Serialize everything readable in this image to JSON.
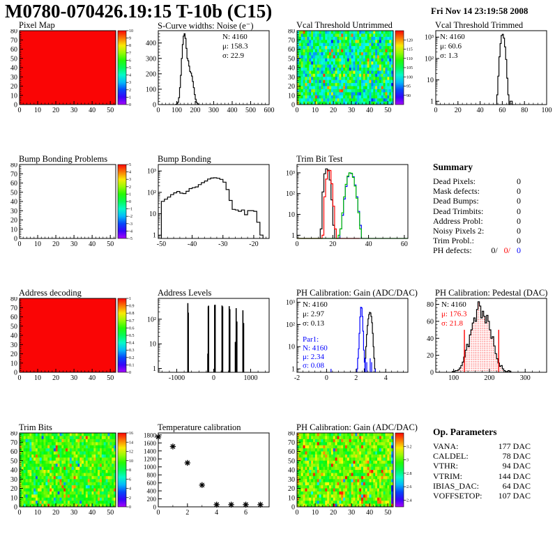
{
  "header": {
    "title": "M0780-070426.19:15 T-10b (C15)",
    "date": "Fri Nov 14 23:19:58 2008"
  },
  "summary": {
    "title": "Summary",
    "rows": [
      {
        "label": "Dead Pixels:",
        "value": "0"
      },
      {
        "label": "Mask defects:",
        "value": "0"
      },
      {
        "label": "Dead Bumps:",
        "value": "0"
      },
      {
        "label": "Dead Trimbits:",
        "value": "0"
      },
      {
        "label": "Address Probl:",
        "value": "0"
      },
      {
        "label": "Noisy Pixels 2:",
        "value": "0"
      },
      {
        "label": "Trim Probl.:",
        "value": "0"
      }
    ],
    "ph_defects": {
      "label": "PH defects:",
      "parts": [
        {
          "text": "0/",
          "color": "#000000"
        },
        {
          "text": "0/",
          "color": "#ff0000"
        },
        {
          "text": "0",
          "color": "#0000ff"
        }
      ]
    }
  },
  "op_parameters": {
    "title": "Op. Parameters",
    "rows": [
      {
        "label": "VANA:",
        "value": "177 DAC"
      },
      {
        "label": "CALDEL:",
        "value": "78 DAC"
      },
      {
        "label": "VTHR:",
        "value": "94 DAC"
      },
      {
        "label": "VTRIM:",
        "value": "144 DAC"
      },
      {
        "label": "IBIAS_DAC:",
        "value": "64 DAC"
      },
      {
        "label": "VOFFSETOP:",
        "value": "107 DAC"
      }
    ]
  },
  "colors": {
    "accent_red": "#ff0000",
    "accent_blue": "#0000ff",
    "accent_green": "#00c000",
    "black": "#000000"
  },
  "chart_data": [
    {
      "type": "heatmap",
      "title": "Pixel Map",
      "x": {
        "min": 0,
        "max": 53,
        "ticks": [
          0,
          10,
          20,
          30,
          40,
          50
        ],
        "minor": 2
      },
      "y": {
        "min": 0,
        "max": 80,
        "ticks": [
          0,
          10,
          20,
          30,
          40,
          50,
          60,
          70,
          80
        ],
        "minor": 2
      },
      "z": {
        "min": 0,
        "max": 10,
        "ticks": [
          0,
          1,
          2,
          3,
          4,
          5,
          6,
          7,
          8,
          9,
          10
        ]
      },
      "fill": {
        "mode": "uniform",
        "value": 10
      }
    },
    {
      "type": "hist",
      "title": "S-Curve widths: Noise (e⁻)",
      "x": {
        "min": 0,
        "max": 600,
        "ticks": [
          0,
          100,
          200,
          300,
          400,
          500,
          600
        ],
        "minor": 20
      },
      "y": {
        "log": false,
        "min": 0,
        "max": 480,
        "ticks": [
          0,
          100,
          200,
          300,
          400
        ],
        "minor": 20
      },
      "series": [
        {
          "color": "#000000",
          "x0": 95,
          "bin_width": 5,
          "values": [
            2,
            6,
            15,
            45,
            110,
            190,
            300,
            390,
            445,
            460,
            430,
            365,
            300,
            285,
            250,
            215,
            205,
            185,
            150,
            110,
            65,
            35,
            15,
            6,
            2
          ]
        }
      ],
      "stats": [
        {
          "pos": [
            120,
            14
          ],
          "lh": 13.5,
          "lines": [
            {
              "text": "N: 4160",
              "color": "#000000"
            },
            {
              "text": "μ: 158.3",
              "color": "#000000"
            },
            {
              "text": "σ: 22.9",
              "color": "#000000"
            }
          ]
        }
      ]
    },
    {
      "type": "heatmap",
      "title": "Vcal Threshold Untrimmed",
      "x": {
        "min": 0,
        "max": 53,
        "ticks": [
          0,
          10,
          20,
          30,
          40,
          50
        ],
        "minor": 2
      },
      "y": {
        "min": 0,
        "max": 80,
        "ticks": [
          0,
          10,
          20,
          30,
          40,
          50,
          60,
          70,
          80
        ],
        "minor": 2
      },
      "z": {
        "min": 85,
        "max": 125,
        "ticks": [
          90,
          95,
          100,
          105,
          110,
          115,
          120
        ]
      },
      "fill": {
        "mode": "noise",
        "seed": 7,
        "mean": 104,
        "sd": 4.5,
        "high_frac": 0.05,
        "high_shift": 13,
        "low_frac": 0.13,
        "low_shift": -8
      }
    },
    {
      "type": "hist",
      "title": "Vcal Threshold Trimmed",
      "x": {
        "min": 0,
        "max": 100,
        "ticks": [
          0,
          20,
          40,
          60,
          80,
          100
        ],
        "minor": 4
      },
      "y": {
        "log": true,
        "min": 0.7,
        "max": 2000
      },
      "series": [
        {
          "color": "#000000",
          "x0": 55,
          "bin_width": 1,
          "values": [
            2,
            15,
            120,
            500,
            1200,
            1350,
            900,
            350,
            90,
            12,
            2,
            0,
            1,
            1,
            0
          ]
        }
      ],
      "stats": [
        {
          "pos": [
            34,
            14
          ],
          "lh": 13.5,
          "lines": [
            {
              "text": "N: 4160",
              "color": "#000000"
            },
            {
              "text": "μ: 60.6",
              "color": "#000000"
            },
            {
              "text": "σ:  1.3",
              "color": "#000000"
            }
          ]
        }
      ]
    },
    {
      "type": "heatmap",
      "title": "Bump Bonding Problems",
      "x": {
        "min": 0,
        "max": 53,
        "ticks": [
          0,
          10,
          20,
          30,
          40,
          50
        ],
        "minor": 2
      },
      "y": {
        "min": 0,
        "max": 80,
        "ticks": [
          0,
          10,
          20,
          30,
          40,
          50,
          60,
          70,
          80
        ],
        "minor": 2
      },
      "z": {
        "min": -5,
        "max": 5,
        "ticks": [
          -5,
          -4,
          -3,
          -2,
          -1,
          0,
          1,
          2,
          3,
          4,
          5
        ]
      },
      "fill": {
        "mode": "empty"
      }
    },
    {
      "type": "hist",
      "title": "Bump Bonding",
      "x": {
        "min": -51,
        "max": -15,
        "ticks": [
          -50,
          -40,
          -30,
          -20
        ],
        "minor": 2
      },
      "y": {
        "log": true,
        "min": 0.7,
        "max": 2000
      },
      "series": [
        {
          "color": "#000000",
          "x0": -50,
          "bin_width": 1,
          "values": [
            38,
            48,
            60,
            78,
            95,
            110,
            92,
            88,
            112,
            150,
            165,
            180,
            230,
            285,
            340,
            420,
            465,
            480,
            455,
            405,
            300,
            135,
            42,
            16,
            15,
            13,
            15,
            9,
            14,
            14,
            13,
            4,
            1
          ]
        }
      ]
    },
    {
      "type": "hist",
      "title": "Trim Bit Test",
      "x": {
        "min": 0,
        "max": 62,
        "ticks": [
          0,
          20,
          40,
          60
        ],
        "minor": 4
      },
      "y": {
        "log": true,
        "min": 0.7,
        "max": 2500
      },
      "series": [
        {
          "color": "#000000",
          "x0": 13,
          "bin_width": 1,
          "values": [
            2,
            120,
            900,
            1550,
            1350,
            450,
            50,
            3
          ]
        },
        {
          "color": "#ff0000",
          "x0": 14,
          "bin_width": 1,
          "values": [
            1,
            70,
            500,
            1250,
            1300,
            300,
            25,
            2
          ],
          "baseline": [
            0,
            35
          ]
        },
        {
          "color": "#0000ff",
          "x0": 24,
          "bin_width": 1,
          "values": [
            2,
            9,
            55,
            220,
            650,
            980,
            920,
            650,
            260,
            70,
            14,
            3
          ]
        },
        {
          "color": "#00c000",
          "x0": 23,
          "bin_width": 1,
          "values": [
            1,
            2,
            12,
            70,
            280,
            700,
            1000,
            950,
            600,
            230,
            60,
            12,
            2
          ],
          "baseline": [
            0,
            62
          ]
        }
      ]
    },
    {
      "type": "heatmap",
      "title": "Address decoding",
      "x": {
        "min": 0,
        "max": 53,
        "ticks": [
          0,
          10,
          20,
          30,
          40,
          50
        ],
        "minor": 2
      },
      "y": {
        "min": 0,
        "max": 80,
        "ticks": [
          0,
          10,
          20,
          30,
          40,
          50,
          60,
          70,
          80
        ],
        "minor": 2
      },
      "z": {
        "min": 0,
        "max": 1,
        "ticks": [
          0,
          0.1,
          0.2,
          0.3,
          0.4,
          0.5,
          0.6,
          0.7,
          0.8,
          0.9,
          1
        ]
      },
      "fill": {
        "mode": "uniform",
        "value": 1
      }
    },
    {
      "type": "spikes",
      "title": "Address Levels",
      "x": {
        "min": -1500,
        "max": 1500,
        "ticks": [
          -1000,
          0,
          1000
        ],
        "minor": 200
      },
      "y": {
        "log": true,
        "min": 0.7,
        "max": 700
      },
      "bars": [
        [
          -700,
          450
        ],
        [
          -686,
          185
        ],
        [
          -160,
          4
        ],
        [
          -148,
          330
        ],
        [
          -138,
          355
        ],
        [
          25,
          380
        ],
        [
          40,
          385
        ],
        [
          225,
          360
        ],
        [
          243,
          330
        ],
        [
          420,
          340
        ],
        [
          438,
          255
        ],
        [
          585,
          12
        ],
        [
          608,
          280
        ],
        [
          628,
          80
        ],
        [
          790,
          230
        ],
        [
          810,
          70
        ]
      ]
    },
    {
      "type": "hist",
      "title": "PH Calibration: Gain (ADC/DAC)",
      "x": {
        "min": -2,
        "max": 5.5,
        "ticks": [
          -2,
          0,
          2,
          4
        ],
        "minor": 0.4
      },
      "y": {
        "log": true,
        "min": 0.7,
        "max": 1500
      },
      "series": [
        {
          "color": "#000000",
          "x0": 2.55,
          "bin_width": 0.05,
          "values": [
            1,
            3,
            10,
            35,
            90,
            180,
            280,
            350,
            330,
            230,
            120,
            40,
            10,
            3,
            1
          ]
        },
        {
          "color": "#0000ff",
          "x0": 2.05,
          "bin_width": 0.05,
          "values": [
            1,
            3,
            8,
            40,
            220,
            600,
            560,
            230,
            50,
            7,
            2
          ],
          "extra_bars": [
            [
              0.3,
              1
            ],
            [
              2.62,
              3
            ],
            [
              2.72,
              2
            ],
            [
              2.95,
              3
            ],
            [
              3.05,
              2
            ],
            [
              3.3,
              1
            ]
          ]
        }
      ],
      "stats": [
        {
          "pos": [
            36,
            14
          ],
          "lh": 13.5,
          "lines": [
            {
              "text": "N: 4160",
              "color": "#000000"
            },
            {
              "text": "μ: 2.97",
              "color": "#000000"
            },
            {
              "text": "σ: 0.13",
              "color": "#000000"
            }
          ]
        },
        {
          "pos": [
            36,
            64
          ],
          "lh": 12.5,
          "lines": [
            {
              "text": "Par1:",
              "color": "#0000ff"
            },
            {
              "text": "N: 4160",
              "color": "#0000ff"
            },
            {
              "text": "μ: 2.34",
              "color": "#0000ff"
            },
            {
              "text": "σ: 0.08",
              "color": "#0000ff"
            }
          ]
        }
      ]
    },
    {
      "type": "hist",
      "title": "PH Calibration: Pedestal (DAC)",
      "x": {
        "min": 50,
        "max": 360,
        "ticks": [
          100,
          200,
          300
        ],
        "minor": 20
      },
      "y": {
        "log": false,
        "min": 0,
        "max": 87,
        "ticks": [
          0,
          20,
          40,
          60,
          80
        ],
        "minor": 4
      },
      "series": [
        {
          "color": "#000000",
          "x0": 96,
          "bin_width": 4,
          "fill": "red-dots",
          "values": [
            1,
            1,
            2,
            2,
            3,
            5,
            8,
            12,
            18,
            26,
            33,
            30,
            44,
            50,
            58,
            64,
            60,
            74,
            83,
            78,
            64,
            72,
            66,
            58,
            67,
            60,
            50,
            40,
            42,
            31,
            22,
            16,
            11,
            7,
            8,
            4,
            2,
            1,
            1,
            2,
            1
          ]
        }
      ],
      "vlines": [
        {
          "x": 130,
          "h": 50,
          "color": "#ff0000"
        },
        {
          "x": 226,
          "h": 50,
          "color": "#ff0000"
        }
      ],
      "stats": [
        {
          "pos": [
            36,
            14
          ],
          "lh": 13.5,
          "lines": [
            {
              "text": "N: 4160",
              "color": "#000000"
            },
            {
              "text": "μ: 176.3",
              "color": "#ff0000"
            },
            {
              "text": "σ: 21.8",
              "color": "#ff0000"
            }
          ]
        }
      ]
    },
    {
      "type": "heatmap",
      "title": "Trim Bits",
      "x": {
        "min": 0,
        "max": 53,
        "ticks": [
          0,
          10,
          20,
          30,
          40,
          50
        ],
        "minor": 2
      },
      "y": {
        "min": 0,
        "max": 80,
        "ticks": [
          0,
          10,
          20,
          30,
          40,
          50,
          60,
          70,
          80
        ],
        "minor": 2
      },
      "z": {
        "min": 0,
        "max": 16,
        "ticks": [
          0,
          2,
          4,
          6,
          8,
          10,
          12,
          14,
          16
        ]
      },
      "fill": {
        "mode": "noise",
        "seed": 21,
        "mean": 9.8,
        "sd": 1.1,
        "high_frac": 0.06,
        "high_shift": 3.8,
        "low_frac": 0.04,
        "low_shift": -5.5
      }
    },
    {
      "type": "scatter",
      "title": "Temperature calibration",
      "x": {
        "min": 0,
        "max": 7.6,
        "ticks": [
          0,
          2,
          4,
          6
        ],
        "minor": 1
      },
      "y": {
        "log": false,
        "min": 0,
        "max": 1850,
        "ticks": [
          0,
          200,
          400,
          600,
          800,
          1000,
          1200,
          1400,
          1600,
          1800
        ],
        "minor": 0,
        "label_fs": 9
      },
      "points": [
        [
          0,
          1750
        ],
        [
          1,
          1510
        ],
        [
          2,
          1100
        ],
        [
          3,
          545
        ],
        [
          4,
          55
        ],
        [
          5,
          55
        ],
        [
          6,
          55
        ],
        [
          7,
          55
        ]
      ]
    },
    {
      "type": "heatmap",
      "title": "PH Calibration: Gain (ADC/DAC)",
      "x": {
        "min": 0,
        "max": 53,
        "ticks": [
          0,
          10,
          20,
          30,
          40,
          50
        ],
        "minor": 2
      },
      "y": {
        "min": 0,
        "max": 80,
        "ticks": [
          0,
          10,
          20,
          30,
          40,
          50,
          60,
          70,
          80
        ],
        "minor": 2
      },
      "z": {
        "min": 2.3,
        "max": 3.4,
        "ticks": [
          2.4,
          2.6,
          2.8,
          3,
          3.2
        ]
      },
      "fill": {
        "mode": "noise",
        "seed": 33,
        "mean": 3.02,
        "sd": 0.08,
        "high_frac": 0.07,
        "high_shift": 0.25,
        "low_frac": 0.02,
        "low_shift": -0.4,
        "edge_shift": -0.45
      }
    }
  ]
}
